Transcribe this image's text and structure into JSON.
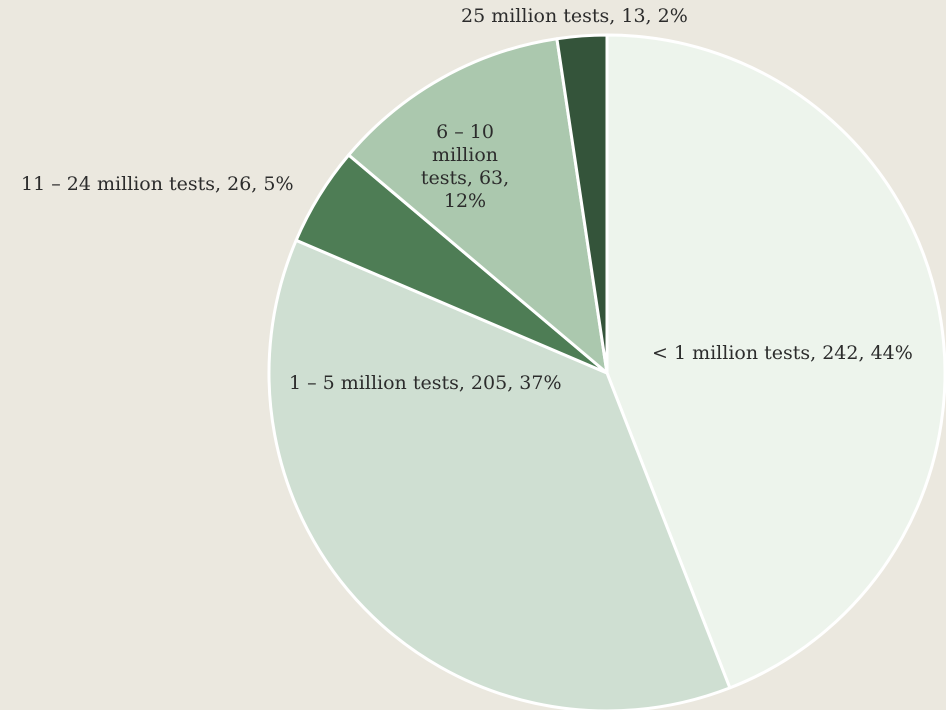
{
  "chart_data": {
    "type": "pie",
    "title": "",
    "slices": [
      {
        "label": "< 1 million tests",
        "value": 242,
        "percent": "44%",
        "text": "< 1 million tests, 242, 44%",
        "color": "#edf4ec"
      },
      {
        "label": "1 – 5 million tests",
        "value": 205,
        "percent": "37%",
        "text": "1 – 5 million tests, 205, 37%",
        "color": "#cfdfd2"
      },
      {
        "label": "11 – 24 million tests",
        "value": 26,
        "percent": "5%",
        "text": "11 – 24 million tests, 26, 5%",
        "color": "#4e7d55"
      },
      {
        "label": "6 – 10 million tests",
        "value": 63,
        "percent": "12%",
        "text": "6 – 10 million tests, 63, 12%",
        "color": "#abc8ae"
      },
      {
        "label": "25 million tests",
        "value": 13,
        "percent": "2%",
        "text": "25 million tests, 13, 2%",
        "color": "#34543a"
      }
    ],
    "background_color": "#ebe8df",
    "border_color": "#ffffff"
  }
}
